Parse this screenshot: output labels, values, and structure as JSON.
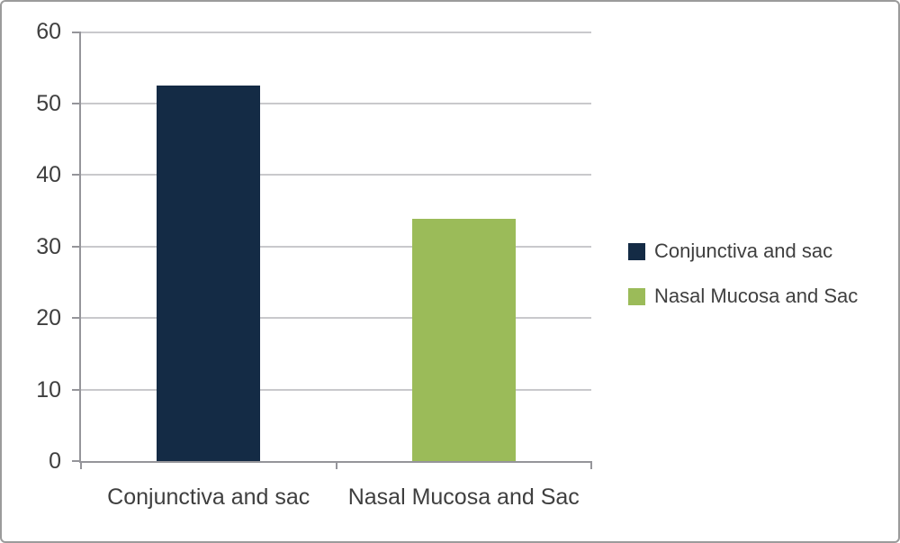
{
  "chart_data": {
    "type": "bar",
    "categories": [
      "Conjunctiva and sac",
      "Nasal Mucosa and Sac"
    ],
    "values": [
      52.4,
      33.8
    ],
    "series": [
      {
        "name": "Conjunctiva and sac",
        "values": [
          52.4
        ],
        "color": "#142b45"
      },
      {
        "name": "Nasal Mucosa and Sac",
        "values": [
          33.8
        ],
        "color": "#9bbb59"
      }
    ],
    "title": "",
    "xlabel": "",
    "ylabel": "",
    "ylim": [
      0,
      60
    ],
    "yticks": [
      0,
      10,
      20,
      30,
      40,
      50,
      60
    ],
    "grid": true,
    "legend_position": "right-middle",
    "legend": [
      {
        "label": "Conjunctiva and sac",
        "color": "#142b45"
      },
      {
        "label": "Nasal Mucosa and Sac",
        "color": "#9bbb59"
      }
    ],
    "bar_colors": [
      "#142b45",
      "#9bbb59"
    ]
  },
  "style": {
    "background": "#ffffff",
    "frame_border_color": "#9b9b9b",
    "gridline_color": "#c9c9cc",
    "axis_color": "#95959a",
    "text_color": "#3f3f3f"
  }
}
